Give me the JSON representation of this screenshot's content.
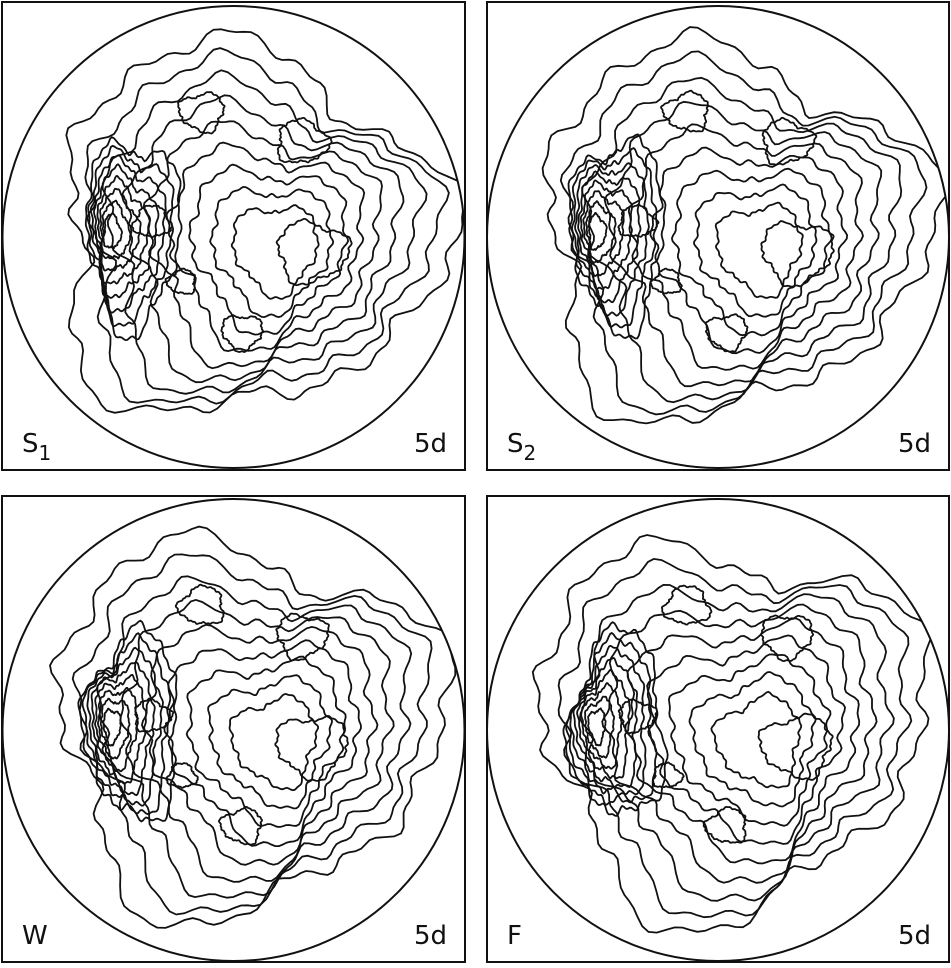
{
  "panels": [
    {
      "label": "S",
      "subscript": "1",
      "lead_time": "5d"
    },
    {
      "label": "S",
      "subscript": "2",
      "lead_time": "5d"
    },
    {
      "label": "W",
      "lead_time": "5d"
    },
    {
      "label": "F",
      "lead_time": "5d"
    }
  ]
}
